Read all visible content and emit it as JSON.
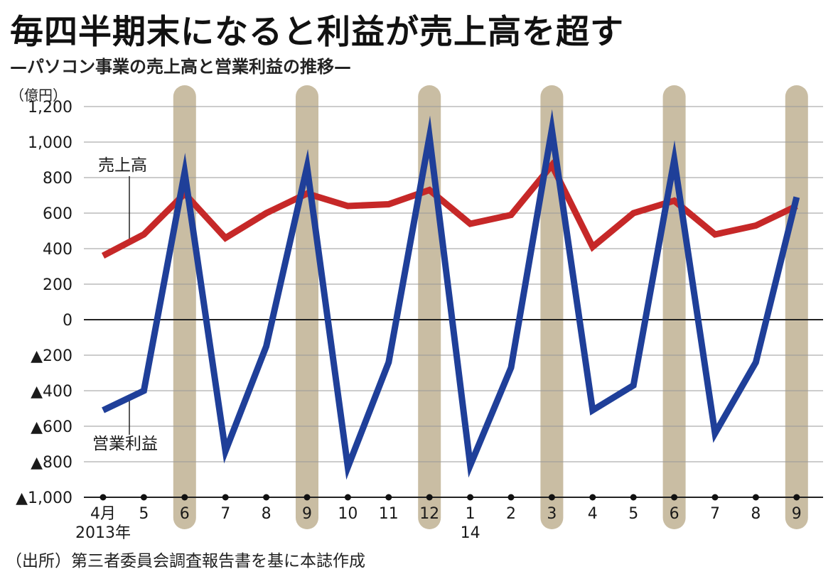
{
  "header": {
    "title": "毎四半期末になると利益が売上高を超す",
    "subtitle": "—パソコン事業の売上高と営業利益の推移—",
    "unit": "（億円）"
  },
  "footer": {
    "source": "（出所）第三者委員会調査報告書を基に本誌作成"
  },
  "colors": {
    "sales": "#c62828",
    "profit": "#1f3f99",
    "quarter_band": "#c9bda3",
    "grid": "#999999"
  },
  "chart_data": {
    "type": "line",
    "title": "毎四半期末になると利益が売上高を超す",
    "subtitle": "—パソコン事業の売上高と営業利益の推移—",
    "ylabel": "（億円）",
    "xlabel": "",
    "ylim": [
      -1000,
      1200
    ],
    "y_ticks": [
      1200,
      1000,
      800,
      600,
      400,
      200,
      0,
      -200,
      -400,
      -600,
      -800,
      -1000
    ],
    "y_tick_labels": [
      "1,200",
      "1,000",
      "800",
      "600",
      "400",
      "200",
      "0",
      "▲200",
      "▲400",
      "▲600",
      "▲800",
      "▲1,000"
    ],
    "categories": [
      "4月",
      "5",
      "6",
      "7",
      "8",
      "9",
      "10",
      "11",
      "12",
      "1",
      "2",
      "3",
      "4",
      "5",
      "6",
      "7",
      "8",
      "9"
    ],
    "year_labels": [
      {
        "index": 0,
        "text": "2013年"
      },
      {
        "index": 9,
        "text": "14"
      }
    ],
    "highlighted_months": [
      "6",
      "9",
      "12",
      "3",
      "6",
      "9"
    ],
    "highlighted_indices": [
      2,
      5,
      8,
      11,
      14,
      17
    ],
    "series": [
      {
        "name": "売上高",
        "color": "#c62828",
        "values": [
          360,
          480,
          710,
          460,
          600,
          710,
          640,
          650,
          730,
          540,
          590,
          870,
          410,
          600,
          670,
          480,
          530,
          640
        ]
      },
      {
        "name": "営業利益",
        "color": "#1f3f99",
        "values": [
          -510,
          -400,
          830,
          -740,
          -150,
          860,
          -830,
          -240,
          1030,
          -820,
          -270,
          1070,
          -510,
          -370,
          900,
          -640,
          -240,
          690
        ]
      }
    ]
  }
}
